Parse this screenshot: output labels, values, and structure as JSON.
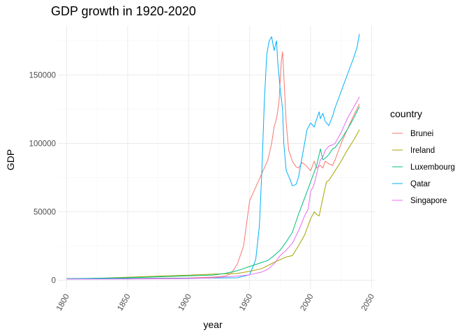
{
  "chart_data": {
    "type": "line",
    "title": "GDP growth in 1920-2020",
    "xlabel": "year",
    "ylabel": "GDP",
    "xlim": [
      1800,
      2050
    ],
    "ylim": [
      0,
      180000
    ],
    "x_ticks": [
      1800,
      1850,
      1900,
      1950,
      2000,
      2050
    ],
    "x_tick_labels": [
      "1800",
      "1850",
      "1900",
      "1950",
      "2000",
      "2050"
    ],
    "y_ticks": [
      0,
      50000,
      100000,
      150000
    ],
    "y_tick_labels": [
      "0",
      "50000",
      "100000",
      "150000"
    ],
    "grid": true,
    "legend_title": "country",
    "legend_position": "right",
    "series": [
      {
        "name": "Brunei",
        "color": "#F8766D",
        "points": [
          [
            1800,
            1100
          ],
          [
            1850,
            1300
          ],
          [
            1900,
            1700
          ],
          [
            1920,
            2300
          ],
          [
            1930,
            3000
          ],
          [
            1935,
            5000
          ],
          [
            1940,
            12000
          ],
          [
            1945,
            25000
          ],
          [
            1950,
            58000
          ],
          [
            1955,
            68000
          ],
          [
            1960,
            78000
          ],
          [
            1965,
            88000
          ],
          [
            1968,
            100000
          ],
          [
            1970,
            112000
          ],
          [
            1972,
            118000
          ],
          [
            1974,
            130000
          ],
          [
            1976,
            160000
          ],
          [
            1977,
            167000
          ],
          [
            1978,
            150000
          ],
          [
            1980,
            115000
          ],
          [
            1982,
            95000
          ],
          [
            1985,
            87000
          ],
          [
            1988,
            83000
          ],
          [
            1990,
            82000
          ],
          [
            1993,
            86000
          ],
          [
            1996,
            84000
          ],
          [
            2000,
            80000
          ],
          [
            2003,
            87000
          ],
          [
            2005,
            82000
          ],
          [
            2008,
            84000
          ],
          [
            2010,
            82000
          ],
          [
            2012,
            87000
          ],
          [
            2015,
            85000
          ],
          [
            2018,
            84000
          ],
          [
            2020,
            88000
          ],
          [
            2025,
            100000
          ],
          [
            2030,
            110000
          ],
          [
            2035,
            120000
          ],
          [
            2040,
            129000
          ]
        ]
      },
      {
        "name": "Ireland",
        "color": "#A3A500",
        "points": [
          [
            1800,
            1000
          ],
          [
            1825,
            1400
          ],
          [
            1850,
            2200
          ],
          [
            1875,
            3000
          ],
          [
            1900,
            3700
          ],
          [
            1920,
            4500
          ],
          [
            1940,
            5000
          ],
          [
            1950,
            6500
          ],
          [
            1960,
            8500
          ],
          [
            1970,
            13000
          ],
          [
            1975,
            15000
          ],
          [
            1980,
            17000
          ],
          [
            1985,
            18000
          ],
          [
            1990,
            25000
          ],
          [
            1995,
            33000
          ],
          [
            2000,
            45000
          ],
          [
            2003,
            50000
          ],
          [
            2005,
            48000
          ],
          [
            2007,
            47000
          ],
          [
            2010,
            60000
          ],
          [
            2013,
            72000
          ],
          [
            2015,
            73000
          ],
          [
            2020,
            80000
          ],
          [
            2025,
            87000
          ],
          [
            2030,
            95000
          ],
          [
            2035,
            102000
          ],
          [
            2040,
            110000
          ]
        ]
      },
      {
        "name": "Luxembourg",
        "color": "#00BF7D",
        "points": [
          [
            1800,
            1100
          ],
          [
            1850,
            1800
          ],
          [
            1880,
            2600
          ],
          [
            1900,
            3200
          ],
          [
            1920,
            3800
          ],
          [
            1930,
            5000
          ],
          [
            1940,
            7000
          ],
          [
            1950,
            10000
          ],
          [
            1955,
            11500
          ],
          [
            1960,
            13000
          ],
          [
            1965,
            14500
          ],
          [
            1970,
            18000
          ],
          [
            1975,
            22000
          ],
          [
            1980,
            28000
          ],
          [
            1985,
            35000
          ],
          [
            1990,
            48000
          ],
          [
            1995,
            60000
          ],
          [
            2000,
            72000
          ],
          [
            2005,
            84000
          ],
          [
            2008,
            96000
          ],
          [
            2010,
            88000
          ],
          [
            2013,
            90000
          ],
          [
            2015,
            92000
          ],
          [
            2018,
            96000
          ],
          [
            2020,
            97000
          ],
          [
            2025,
            103000
          ],
          [
            2030,
            110000
          ],
          [
            2035,
            118000
          ],
          [
            2040,
            127000
          ]
        ]
      },
      {
        "name": "Qatar",
        "color": "#00B0F6",
        "points": [
          [
            1800,
            1000
          ],
          [
            1850,
            1100
          ],
          [
            1900,
            1400
          ],
          [
            1940,
            1800
          ],
          [
            1950,
            4000
          ],
          [
            1955,
            15000
          ],
          [
            1958,
            40000
          ],
          [
            1960,
            80000
          ],
          [
            1962,
            130000
          ],
          [
            1964,
            165000
          ],
          [
            1966,
            175000
          ],
          [
            1968,
            178000
          ],
          [
            1970,
            168000
          ],
          [
            1972,
            175000
          ],
          [
            1973,
            160000
          ],
          [
            1975,
            140000
          ],
          [
            1977,
            125000
          ],
          [
            1978,
            100000
          ],
          [
            1980,
            80000
          ],
          [
            1983,
            74000
          ],
          [
            1985,
            69000
          ],
          [
            1988,
            70000
          ],
          [
            1990,
            75000
          ],
          [
            1992,
            85000
          ],
          [
            1995,
            100000
          ],
          [
            1997,
            110000
          ],
          [
            2000,
            115000
          ],
          [
            2003,
            112000
          ],
          [
            2005,
            118000
          ],
          [
            2007,
            123000
          ],
          [
            2008,
            118000
          ],
          [
            2010,
            122000
          ],
          [
            2012,
            116000
          ],
          [
            2015,
            113000
          ],
          [
            2018,
            120000
          ],
          [
            2020,
            126000
          ],
          [
            2025,
            138000
          ],
          [
            2030,
            150000
          ],
          [
            2035,
            162000
          ],
          [
            2038,
            170000
          ],
          [
            2040,
            180000
          ]
        ]
      },
      {
        "name": "Singapore",
        "color": "#E76BF3",
        "points": [
          [
            1800,
            800
          ],
          [
            1850,
            900
          ],
          [
            1900,
            1200
          ],
          [
            1920,
            1800
          ],
          [
            1930,
            2500
          ],
          [
            1940,
            3000
          ],
          [
            1950,
            4000
          ],
          [
            1955,
            5000
          ],
          [
            1960,
            6000
          ],
          [
            1965,
            8000
          ],
          [
            1970,
            12000
          ],
          [
            1975,
            18000
          ],
          [
            1980,
            22000
          ],
          [
            1985,
            27000
          ],
          [
            1990,
            36000
          ],
          [
            1995,
            47000
          ],
          [
            1998,
            52000
          ],
          [
            2000,
            65000
          ],
          [
            2002,
            68000
          ],
          [
            2004,
            74000
          ],
          [
            2006,
            82000
          ],
          [
            2008,
            88000
          ],
          [
            2010,
            90000
          ],
          [
            2012,
            95000
          ],
          [
            2015,
            98000
          ],
          [
            2018,
            99000
          ],
          [
            2020,
            100000
          ],
          [
            2025,
            108000
          ],
          [
            2030,
            118000
          ],
          [
            2035,
            126000
          ],
          [
            2040,
            134000
          ]
        ]
      }
    ]
  }
}
